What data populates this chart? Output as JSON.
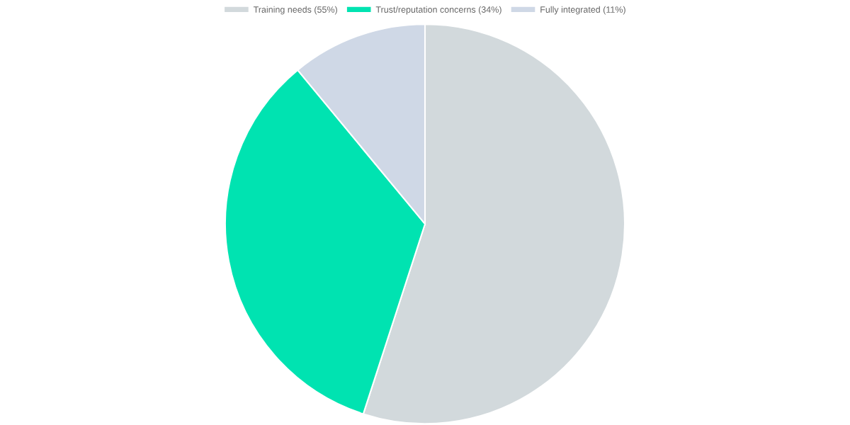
{
  "chart_data": {
    "type": "pie",
    "categories": [
      "Training needs (55%)",
      "Trust/reputation concerns (34%)",
      "Fully integrated (11%)"
    ],
    "values": [
      55,
      34,
      11
    ],
    "colors": [
      "#d2d9dc",
      "#00e3b1",
      "#cfd8e6"
    ],
    "legend": "top"
  }
}
